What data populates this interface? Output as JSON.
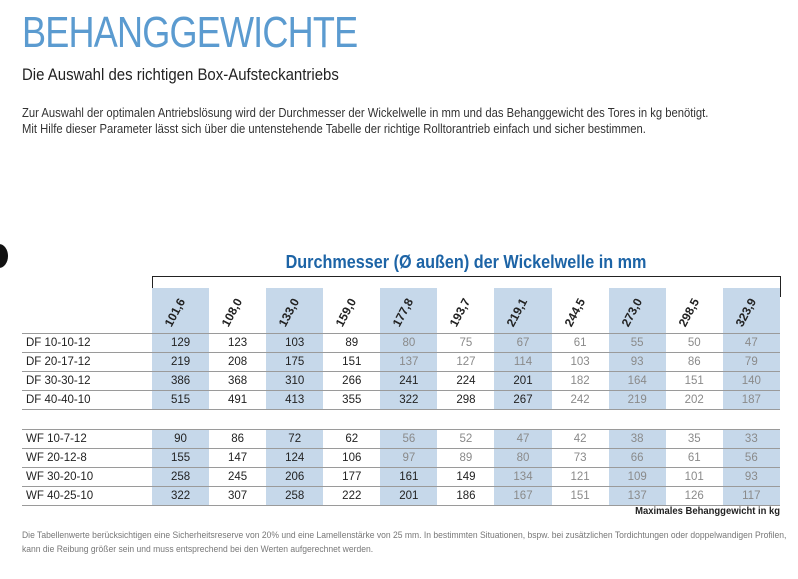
{
  "header": {
    "title": "BEHANGGEWICHTE",
    "subtitle": "Die Auswahl des richtigen Box-Aufsteckantriebs",
    "intro": [
      "Zur Auswahl der optimalen Antriebslösung wird der Durchmesser der Wickelwelle in mm und das Behanggewicht des Tores in kg benötigt.",
      "Mit Hilfe dieser Parameter lässt sich über die untenstehende Tabelle der richtige Rolltorantrieb einfach und sicher bestimmen."
    ]
  },
  "table": {
    "heading": "Durchmesser (Ø außen) der Wickelwelle in mm",
    "columns": [
      "101,6",
      "108,0",
      "133,0",
      "159,0",
      "177,8",
      "193,7",
      "219,1",
      "244,5",
      "273,0",
      "298,5",
      "323,9"
    ],
    "groups": [
      [
        {
          "label": "DF 10-10-12",
          "values": [
            129,
            123,
            103,
            89,
            80,
            75,
            67,
            61,
            55,
            50,
            47
          ]
        },
        {
          "label": "DF 20-17-12",
          "values": [
            219,
            208,
            175,
            151,
            137,
            127,
            114,
            103,
            93,
            86,
            79
          ]
        },
        {
          "label": "DF 30-30-12",
          "values": [
            386,
            368,
            310,
            266,
            241,
            224,
            201,
            182,
            164,
            151,
            140
          ]
        },
        {
          "label": "DF 40-40-10",
          "values": [
            515,
            491,
            413,
            355,
            322,
            298,
            267,
            242,
            219,
            202,
            187
          ]
        }
      ],
      [
        {
          "label": "WF 10-7-12",
          "values": [
            90,
            86,
            72,
            62,
            56,
            52,
            47,
            42,
            38,
            35,
            33
          ]
        },
        {
          "label": "WF 20-12-8",
          "values": [
            155,
            147,
            124,
            106,
            97,
            89,
            80,
            73,
            66,
            61,
            56
          ]
        },
        {
          "label": "WF 30-20-10",
          "values": [
            258,
            245,
            206,
            177,
            161,
            149,
            134,
            121,
            109,
            101,
            93
          ]
        },
        {
          "label": "WF 40-25-10",
          "values": [
            322,
            307,
            258,
            222,
            201,
            186,
            167,
            151,
            137,
            126,
            117
          ]
        }
      ]
    ],
    "unit_note": "Maximales Behanggewicht in kg"
  },
  "footer": [
    "Die Tabellenwerte berücksichtigen eine Sicherheitsreserve von 20% und eine Lamellenstärke von 25 mm. In bestimmten Situationen, bspw. bei zusätzlichen Tordichtungen oder doppelwandigen Profilen,",
    "kann die Reibung größer sein und muss entsprechend bei den Werten aufgerechnet werden."
  ]
}
